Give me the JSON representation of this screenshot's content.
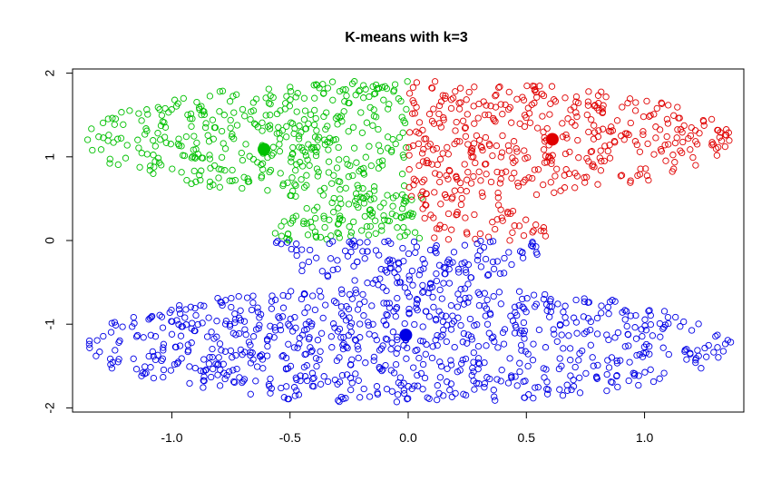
{
  "chart_data": {
    "type": "scatter",
    "title": "K-means with k=3",
    "xlabel": "",
    "ylabel": "",
    "xlim": [
      -1.42,
      1.42
    ],
    "ylim": [
      -2.05,
      2.05
    ],
    "x_ticks": [
      -1.0,
      -0.5,
      0.0,
      0.5,
      1.0
    ],
    "x_tick_labels": [
      "-1.0",
      "-0.5",
      "0.0",
      "0.5",
      "1.0"
    ],
    "y_ticks": [
      -2,
      -1,
      0,
      1,
      2
    ],
    "y_tick_labels": [
      "-2",
      "-1",
      "0",
      "1",
      "2"
    ],
    "grid": false,
    "legend": "none",
    "colors": {
      "cluster_top_left": "#00c000",
      "cluster_top_right": "#e00000",
      "cluster_bottom": "#0000e6"
    },
    "clusters": [
      {
        "color_key": "cluster_top_left",
        "centroid": [
          -0.61,
          1.09
        ],
        "regions": [
          {
            "shape": "half-ellipse",
            "cx": 0.0,
            "cy": 1.2,
            "rx": 1.37,
            "ry": 0.72,
            "x_range": [
              -1.37,
              0.0
            ],
            "n": 420
          },
          {
            "shape": "half-ellipse",
            "cx": 0.0,
            "cy": 0.0,
            "rx": 0.58,
            "ry": 0.58,
            "y_range": [
              0.0,
              0.58
            ],
            "x_range": [
              -0.58,
              0.06
            ],
            "n": 110
          }
        ]
      },
      {
        "color_key": "cluster_top_right",
        "centroid": [
          0.61,
          1.21
        ],
        "regions": [
          {
            "shape": "half-ellipse",
            "cx": 0.0,
            "cy": 1.2,
            "rx": 1.37,
            "ry": 0.72,
            "x_range": [
              0.0,
              1.37
            ],
            "n": 420
          },
          {
            "shape": "half-ellipse",
            "cx": 0.0,
            "cy": 0.0,
            "rx": 0.6,
            "ry": 0.58,
            "y_range": [
              0.0,
              0.45
            ],
            "x_range": [
              0.06,
              0.6
            ],
            "n": 50
          }
        ]
      },
      {
        "color_key": "cluster_bottom",
        "centroid": [
          -0.01,
          -1.13
        ],
        "regions": [
          {
            "shape": "ellipse",
            "cx": 0.0,
            "cy": -1.25,
            "rx": 1.37,
            "ry": 0.7,
            "n": 820
          },
          {
            "shape": "half-ellipse",
            "cx": 0.0,
            "cy": 0.0,
            "rx": 0.58,
            "ry": 0.58,
            "y_range": [
              -0.58,
              0.0
            ],
            "n": 150
          }
        ]
      }
    ]
  }
}
